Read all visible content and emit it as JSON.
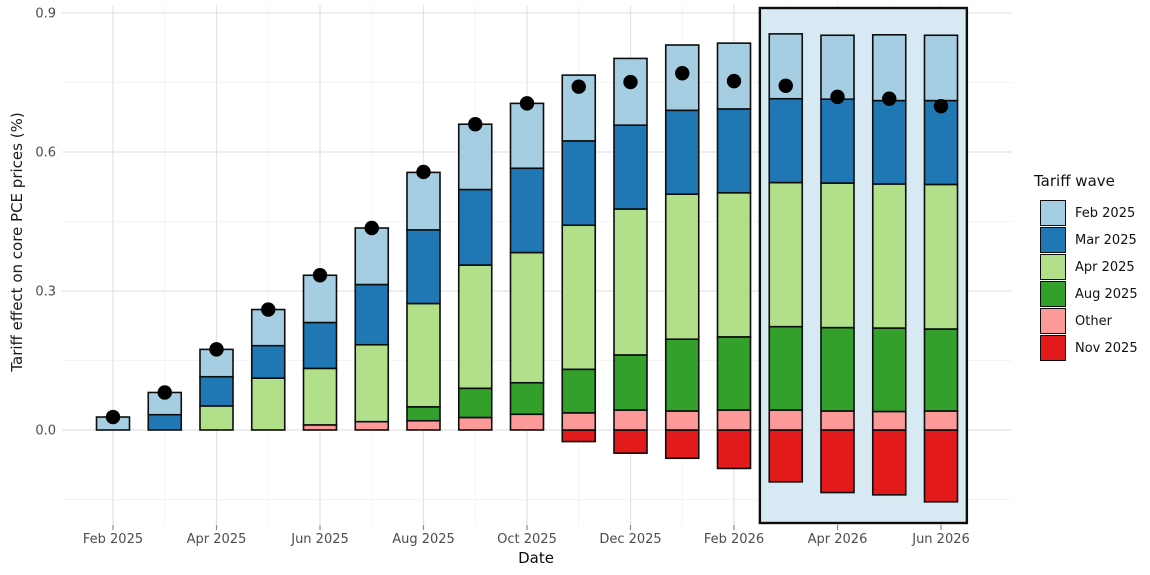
{
  "chart_data": {
    "type": "bar",
    "variant": "stacked-with-net-dots",
    "title": "",
    "xlabel": "Date",
    "ylabel": "Tariff effect on core PCE prices (%)",
    "legend_title": "Tariff wave",
    "categories": [
      "Feb 2025",
      "Mar 2025",
      "Apr 2025",
      "May 2025",
      "Jun 2025",
      "Jul 2025",
      "Aug 2025",
      "Sep 2025",
      "Oct 2025",
      "Nov 2025",
      "Dec 2025",
      "Jan 2026",
      "Feb 2026",
      "Mar 2026",
      "Apr 2026",
      "May 2026",
      "Jun 2026"
    ],
    "x_tick_labels": [
      "Feb 2025",
      "Apr 2025",
      "Jun 2025",
      "Aug 2025",
      "Oct 2025",
      "Dec 2025",
      "Feb 2026",
      "Apr 2026",
      "Jun 2026"
    ],
    "y_tick_labels": [
      "0.0",
      "0.3",
      "0.6",
      "0.9"
    ],
    "y_ticks": [
      0.0,
      0.3,
      0.6,
      0.9
    ],
    "ylim": [
      -0.17,
      0.9
    ],
    "grid": true,
    "legend_position": "right",
    "series": [
      {
        "name": "Feb 2025",
        "color": "#A6CEE3",
        "values": [
          0.028,
          0.048,
          0.059,
          0.078,
          0.102,
          0.122,
          0.124,
          0.141,
          0.14,
          0.142,
          0.144,
          0.141,
          0.142,
          0.14,
          0.138,
          0.142,
          0.141
        ]
      },
      {
        "name": "Mar 2025",
        "color": "#1F78B4",
        "values": [
          0,
          0.033,
          0.063,
          0.07,
          0.099,
          0.13,
          0.159,
          0.163,
          0.182,
          0.182,
          0.181,
          0.181,
          0.181,
          0.181,
          0.181,
          0.18,
          0.181
        ]
      },
      {
        "name": "Apr 2025",
        "color": "#B2DF8A",
        "values": [
          0,
          0,
          0.052,
          0.112,
          0.122,
          0.166,
          0.223,
          0.266,
          0.281,
          0.311,
          0.315,
          0.313,
          0.311,
          0.311,
          0.312,
          0.311,
          0.312
        ]
      },
      {
        "name": "Aug 2025",
        "color": "#33A02C",
        "values": [
          0,
          0,
          0,
          0,
          0,
          0,
          0.03,
          0.063,
          0.068,
          0.094,
          0.119,
          0.155,
          0.158,
          0.18,
          0.18,
          0.18,
          0.177
        ]
      },
      {
        "name": "Other",
        "color": "#FB9A99",
        "values": [
          0,
          0,
          0,
          0,
          0.011,
          0.018,
          0.02,
          0.027,
          0.034,
          0.037,
          0.043,
          0.041,
          0.043,
          0.043,
          0.041,
          0.04,
          0.041
        ]
      },
      {
        "name": "Nov 2025",
        "color": "#E31A1C",
        "values": [
          0,
          0,
          0,
          0,
          0,
          0,
          0,
          0,
          0,
          -0.025,
          -0.05,
          -0.061,
          -0.083,
          -0.112,
          -0.135,
          -0.14,
          -0.155
        ]
      }
    ],
    "dots": {
      "name": "net-total-effect",
      "color": "#000000",
      "values": [
        0.028,
        0.081,
        0.174,
        0.26,
        0.334,
        0.436,
        0.557,
        0.66,
        0.705,
        0.741,
        0.751,
        0.77,
        0.753,
        0.743,
        0.719,
        0.715,
        0.699
      ]
    },
    "highlight": {
      "start_category": "Mar 2026",
      "end_category": "Jun 2026",
      "fill": "#D7E9F2",
      "border": "#0d0d0d"
    },
    "colors": {
      "bar_outline": "#0d0d0d",
      "grid_major": "#E3E3E3",
      "grid_minor": "#F0F0F0",
      "tick_label": "#4d4d4d",
      "axis_title": "#1a1a1a",
      "tick_mark": "#8a8a8a"
    }
  }
}
